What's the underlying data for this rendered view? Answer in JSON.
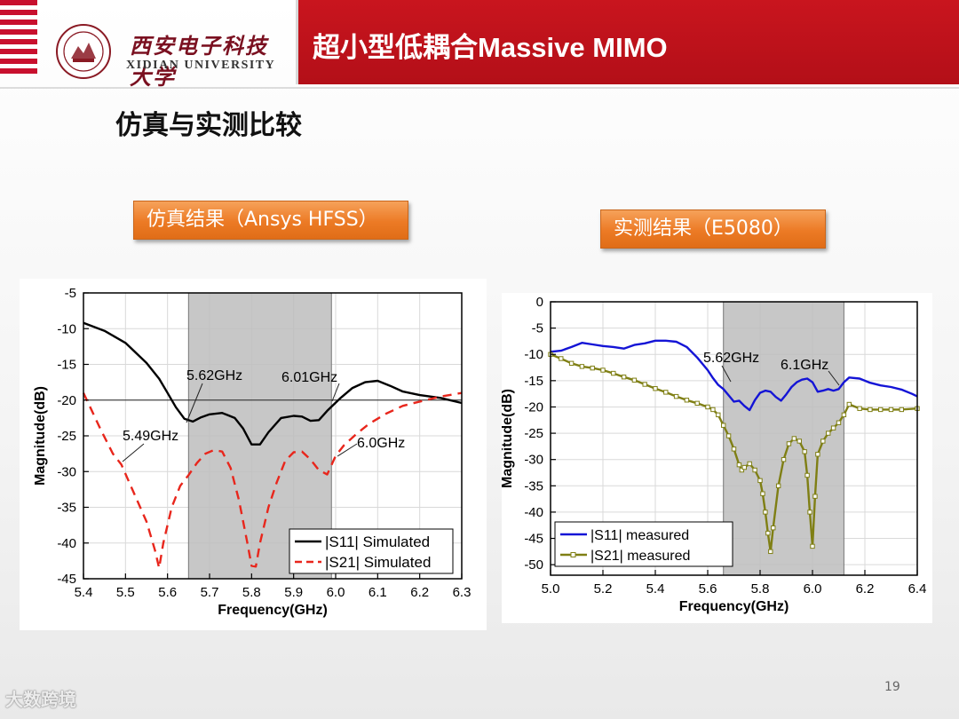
{
  "header": {
    "university_cn": "西安电子科技大学",
    "university_en": "XIDIAN UNIVERSITY",
    "title": "超小型低耦合Massive MIMO",
    "brand_color": "#c9151e"
  },
  "slide": {
    "heading": "仿真与实测比较",
    "tag_left": "仿真结果（Ansys HFSS）",
    "tag_right": "实测结果（E5080）",
    "page_number": "19",
    "watermark": "大数跨境"
  },
  "chart_data": [
    {
      "type": "line",
      "xlabel": "Frequency(GHz)",
      "ylabel": "Magnitude(dB)",
      "xlim": [
        5.4,
        6.3
      ],
      "ylim": [
        -45,
        -5
      ],
      "xticks": [
        5.4,
        5.5,
        5.6,
        5.7,
        5.8,
        5.9,
        6.0,
        6.1,
        6.2,
        6.3
      ],
      "xtick_labels": [
        "5.4",
        "5.5",
        "5.6",
        "5.7",
        "5.8",
        "5.9",
        "6.0",
        "6.1",
        "6.2",
        "6.3"
      ],
      "yticks": [
        -5,
        -10,
        -15,
        -20,
        -25,
        -30,
        -35,
        -40,
        -45
      ],
      "ytick_labels": [
        "-5",
        "-10",
        "-15",
        "-20",
        "-25",
        "-30",
        "-35",
        "-40",
        "-45"
      ],
      "grid": true,
      "band": [
        5.65,
        5.99
      ],
      "hline": -20,
      "legend_position": "bottom-right",
      "series": [
        {
          "name": "|S11| Simulated",
          "color": "#000000",
          "dash": "solid",
          "x": [
            5.4,
            5.45,
            5.5,
            5.55,
            5.58,
            5.6,
            5.62,
            5.64,
            5.66,
            5.68,
            5.7,
            5.73,
            5.76,
            5.78,
            5.8,
            5.82,
            5.84,
            5.87,
            5.9,
            5.92,
            5.94,
            5.96,
            5.98,
            6.01,
            6.04,
            6.07,
            6.1,
            6.13,
            6.16,
            6.2,
            6.25,
            6.3
          ],
          "y": [
            -9.2,
            -10.3,
            -12,
            -14.8,
            -17,
            -19,
            -21,
            -22.6,
            -23,
            -22.4,
            -22,
            -21.8,
            -22.5,
            -24,
            -26.2,
            -26.2,
            -24.5,
            -22.5,
            -22.2,
            -22.3,
            -22.9,
            -22.8,
            -21.5,
            -19.8,
            -18.3,
            -17.5,
            -17.3,
            -18,
            -18.8,
            -19.3,
            -19.7,
            -20.4
          ]
        },
        {
          "name": "|S21| Simulated",
          "color": "#e8261c",
          "dash": "dashed",
          "x": [
            5.4,
            5.42,
            5.44,
            5.47,
            5.49,
            5.52,
            5.55,
            5.57,
            5.58,
            5.59,
            5.61,
            5.63,
            5.65,
            5.67,
            5.69,
            5.71,
            5.73,
            5.75,
            5.77,
            5.79,
            5.8,
            5.81,
            5.82,
            5.84,
            5.86,
            5.88,
            5.9,
            5.92,
            5.94,
            5.96,
            5.98,
            6.0,
            6.02,
            6.05,
            6.08,
            6.12,
            6.16,
            6.2,
            6.25,
            6.3
          ],
          "y": [
            -19,
            -21.5,
            -24,
            -27.5,
            -29,
            -33,
            -37,
            -41,
            -43.5,
            -40,
            -35,
            -32,
            -30.5,
            -28.8,
            -27.5,
            -27,
            -27.2,
            -29.5,
            -34,
            -40,
            -43.2,
            -43.3,
            -40,
            -35,
            -31.5,
            -28.5,
            -27.3,
            -27.2,
            -28.3,
            -29.8,
            -30.4,
            -27.8,
            -26.3,
            -24.7,
            -23.3,
            -21.9,
            -20.8,
            -20.2,
            -19.5,
            -19
          ]
        }
      ],
      "annotations": [
        "5.62GHz",
        "6.01GHz",
        "5.49GHz",
        "6.0GHz"
      ]
    },
    {
      "type": "line",
      "xlabel": "Frequency(GHz)",
      "ylabel": "Magnitude(dB)",
      "xlim": [
        5.0,
        6.4
      ],
      "ylim": [
        -52,
        0
      ],
      "xticks": [
        5.0,
        5.2,
        5.4,
        5.6,
        5.8,
        6.0,
        6.2,
        6.4
      ],
      "xtick_labels": [
        "5.0",
        "5.2",
        "5.4",
        "5.6",
        "5.8",
        "6.0",
        "6.2",
        "6.4"
      ],
      "yticks": [
        0,
        -5,
        -10,
        -15,
        -20,
        -25,
        -30,
        -35,
        -40,
        -45,
        -50
      ],
      "ytick_labels": [
        "0",
        "-5",
        "-10",
        "-15",
        "-20",
        "-25",
        "-30",
        "-35",
        "-40",
        "-45",
        "-50"
      ],
      "grid": true,
      "band": [
        5.66,
        6.12
      ],
      "legend_position": "bottom-left",
      "series": [
        {
          "name": "|S11| measured",
          "color": "#1414d6",
          "dash": "solid",
          "x": [
            5.0,
            5.04,
            5.08,
            5.12,
            5.16,
            5.2,
            5.24,
            5.28,
            5.32,
            5.36,
            5.4,
            5.44,
            5.48,
            5.52,
            5.56,
            5.6,
            5.62,
            5.64,
            5.66,
            5.68,
            5.7,
            5.72,
            5.74,
            5.76,
            5.78,
            5.8,
            5.82,
            5.84,
            5.86,
            5.88,
            5.9,
            5.92,
            5.94,
            5.96,
            5.98,
            6.0,
            6.02,
            6.04,
            6.06,
            6.08,
            6.1,
            6.12,
            6.14,
            6.18,
            6.22,
            6.26,
            6.3,
            6.34,
            6.38,
            6.4
          ],
          "y": [
            -9.5,
            -9.3,
            -8.6,
            -7.8,
            -8.1,
            -8.4,
            -8.6,
            -8.9,
            -8.2,
            -7.9,
            -7.4,
            -7.4,
            -7.6,
            -8.6,
            -10.6,
            -13,
            -14.5,
            -15.8,
            -16.6,
            -17.8,
            -19,
            -18.8,
            -19.8,
            -20.6,
            -18.7,
            -17.3,
            -16.9,
            -17.1,
            -18.1,
            -18.8,
            -17.6,
            -16.2,
            -15.3,
            -14.8,
            -14.6,
            -15.3,
            -17.1,
            -16.9,
            -16.6,
            -16.9,
            -16.6,
            -15.3,
            -14.4,
            -14.6,
            -15.4,
            -15.9,
            -16.2,
            -16.7,
            -17.5,
            -18
          ]
        },
        {
          "name": "|S21| measured",
          "color": "#7f7f14",
          "dash": "solid",
          "x": [
            5.0,
            5.04,
            5.08,
            5.12,
            5.16,
            5.2,
            5.24,
            5.28,
            5.32,
            5.36,
            5.4,
            5.44,
            5.48,
            5.52,
            5.56,
            5.6,
            5.62,
            5.64,
            5.66,
            5.68,
            5.7,
            5.72,
            5.73,
            5.74,
            5.76,
            5.78,
            5.8,
            5.81,
            5.82,
            5.83,
            5.84,
            5.85,
            5.87,
            5.89,
            5.91,
            5.93,
            5.95,
            5.97,
            5.98,
            5.99,
            6.0,
            6.01,
            6.02,
            6.04,
            6.06,
            6.08,
            6.1,
            6.12,
            6.14,
            6.18,
            6.22,
            6.26,
            6.3,
            6.34,
            6.4
          ],
          "y": [
            -10,
            -10.8,
            -11.7,
            -12.3,
            -12.6,
            -13,
            -13.6,
            -14.3,
            -14.9,
            -15.7,
            -16.5,
            -17.2,
            -18,
            -18.7,
            -19.3,
            -20,
            -20.5,
            -21.5,
            -23.5,
            -25.5,
            -28,
            -31,
            -32,
            -31.5,
            -30.8,
            -32,
            -34,
            -36.5,
            -40,
            -44,
            -47.5,
            -43,
            -35,
            -30,
            -27,
            -26,
            -26.5,
            -28.5,
            -33,
            -40,
            -46.5,
            -37,
            -29,
            -26.5,
            -25,
            -24,
            -23,
            -21.5,
            -19.5,
            -20.3,
            -20.5,
            -20.5,
            -20.5,
            -20.5,
            -20.3
          ]
        }
      ],
      "annotations": [
        "5.62GHz",
        "6.1GHz"
      ]
    }
  ]
}
